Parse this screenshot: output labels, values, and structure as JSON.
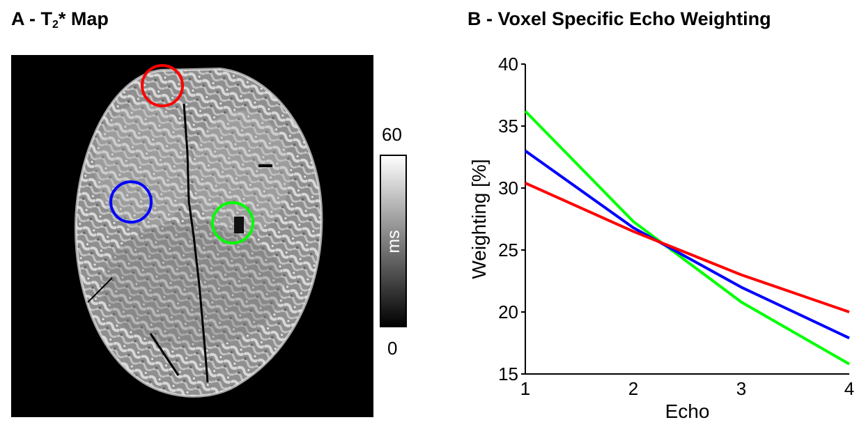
{
  "panel_a": {
    "title_prefix": "A - T",
    "title_subscript": "2",
    "title_suffix": "* Map",
    "colorbar": {
      "max_label": "60",
      "min_label": "0",
      "unit": "ms"
    },
    "roi_colors": {
      "red": "#ff0000",
      "blue": "#0000ff",
      "green": "#00ff00"
    }
  },
  "chart_data": {
    "type": "line",
    "title": "B - Voxel Specific Echo Weighting",
    "xlabel": "Echo",
    "ylabel": "Weighting [%]",
    "x": [
      1,
      2,
      3,
      4
    ],
    "xticks": [
      "1",
      "2",
      "3",
      "4"
    ],
    "yticks": [
      "15",
      "20",
      "25",
      "30",
      "35",
      "40"
    ],
    "xlim": [
      1,
      4
    ],
    "ylim": [
      15,
      40
    ],
    "grid": false,
    "series": [
      {
        "color": "#00ff00",
        "values": [
          36.2,
          27.3,
          20.8,
          15.8
        ]
      },
      {
        "color": "#0000ff",
        "values": [
          33.0,
          26.8,
          22.0,
          17.9
        ]
      },
      {
        "color": "#ff0000",
        "values": [
          30.4,
          26.5,
          23.0,
          20.0
        ]
      }
    ]
  }
}
